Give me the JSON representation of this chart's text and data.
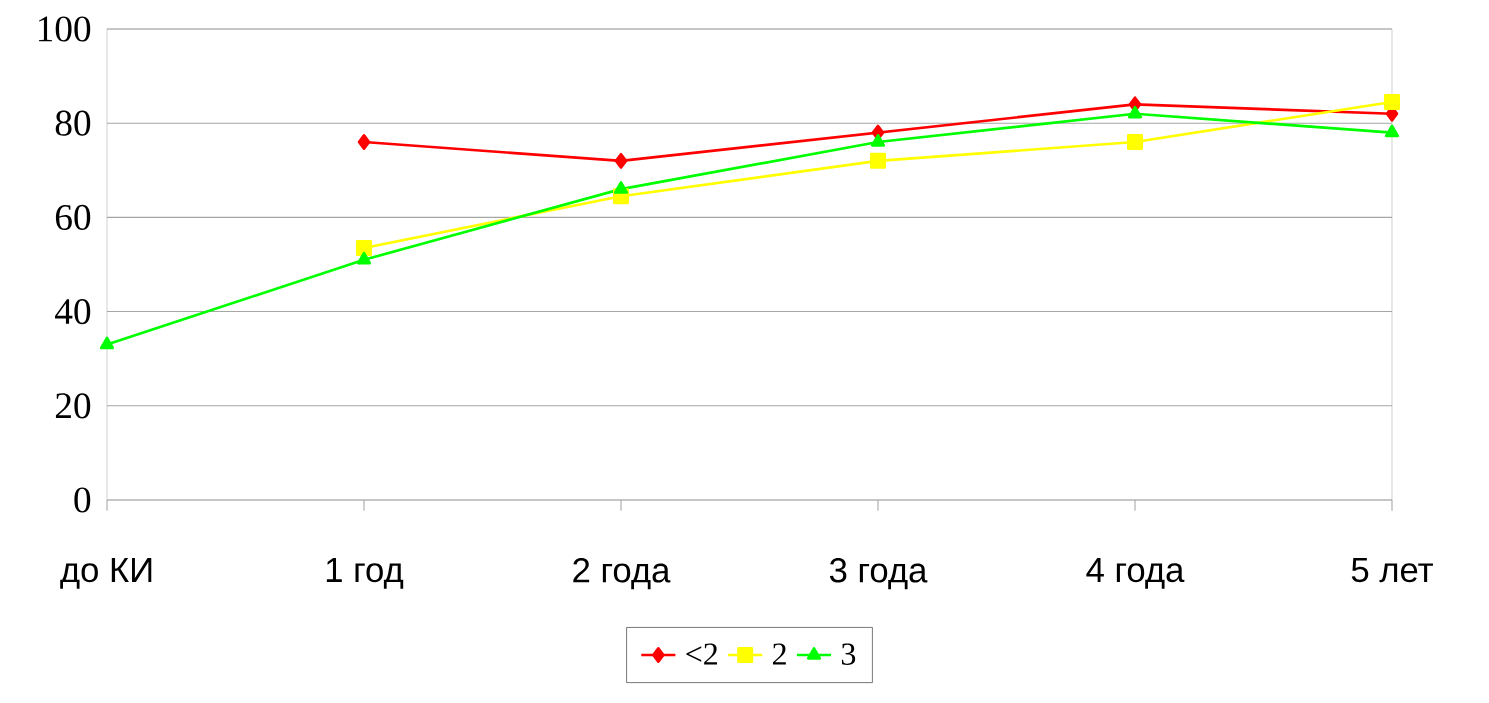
{
  "chart_data": {
    "type": "line",
    "categories": [
      "до КИ",
      "1 год",
      "2 года",
      "3 года",
      "4 года",
      "5 лет"
    ],
    "ylim": [
      0,
      100
    ],
    "yticks": [
      0,
      20,
      40,
      60,
      80,
      100
    ],
    "grid": "y",
    "legend": "bottom",
    "series": [
      {
        "name": "<2",
        "color": "#ff0000",
        "marker": "diamond",
        "values": [
          null,
          76,
          72,
          78,
          84,
          82
        ]
      },
      {
        "name": "2",
        "color": "#ffff00",
        "marker": "square",
        "values": [
          null,
          53.5,
          64.5,
          72,
          76,
          84.5
        ]
      },
      {
        "name": "3",
        "color": "#00ff00",
        "marker": "triangle",
        "values": [
          33,
          51,
          66,
          76,
          82,
          78
        ]
      }
    ]
  }
}
